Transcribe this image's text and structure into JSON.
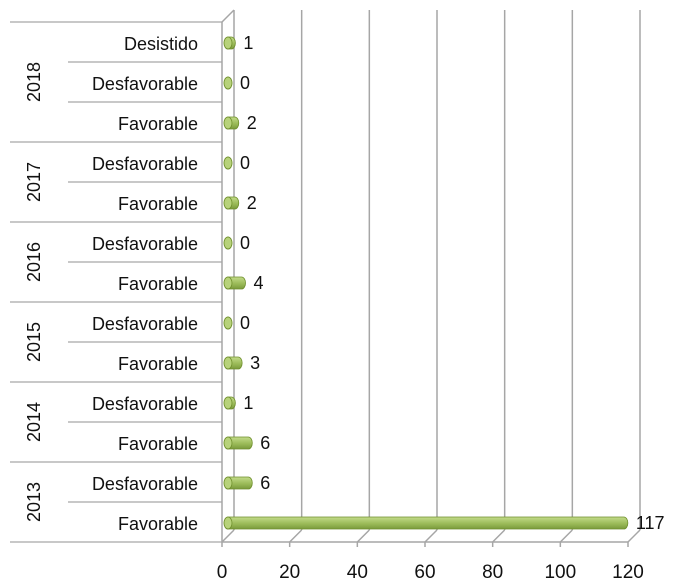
{
  "chart_data": {
    "type": "bar",
    "orientation": "horizontal",
    "three_d": true,
    "title": "",
    "xlabel": "",
    "ylabel": "",
    "xlim": [
      0,
      120
    ],
    "x_ticks": [
      0,
      20,
      40,
      60,
      80,
      100,
      120
    ],
    "grid": "vertical",
    "legend": "none",
    "bar_color": "#9bbb59",
    "bar_dark_color": "#6f8f2c",
    "grid_color": "#a6a6a6",
    "categories": [
      {
        "group": "2018",
        "label": "Desistido",
        "value": 1
      },
      {
        "group": "2018",
        "label": "Desfavorable",
        "value": 0
      },
      {
        "group": "2018",
        "label": "Favorable",
        "value": 2
      },
      {
        "group": "2017",
        "label": "Desfavorable",
        "value": 0
      },
      {
        "group": "2017",
        "label": "Favorable",
        "value": 2
      },
      {
        "group": "2016",
        "label": "Desfavorable",
        "value": 0
      },
      {
        "group": "2016",
        "label": "Favorable",
        "value": 4
      },
      {
        "group": "2015",
        "label": "Desfavorable",
        "value": 0
      },
      {
        "group": "2015",
        "label": "Favorable",
        "value": 3
      },
      {
        "group": "2014",
        "label": "Desfavorable",
        "value": 1
      },
      {
        "group": "2014",
        "label": "Favorable",
        "value": 6
      },
      {
        "group": "2013",
        "label": "Desfavorable",
        "value": 6
      },
      {
        "group": "2013",
        "label": "Favorable",
        "value": 117
      }
    ],
    "groups": [
      "2018",
      "2017",
      "2016",
      "2015",
      "2014",
      "2013"
    ]
  }
}
